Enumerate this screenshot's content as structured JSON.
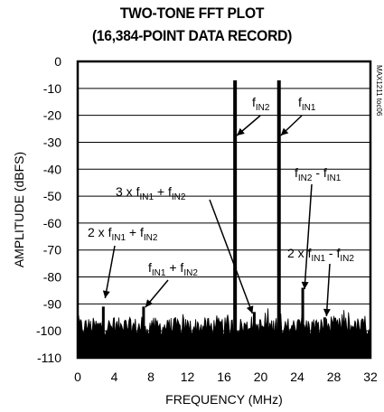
{
  "chart_data": {
    "type": "line",
    "title": "TWO-TONE FFT PLOT",
    "subtitle": "(16,384-POINT DATA RECORD)",
    "xlabel": "FREQUENCY (MHz)",
    "ylabel": "AMPLITUDE (dBFS)",
    "xlim": [
      0,
      32
    ],
    "ylim": [
      -110,
      0
    ],
    "xticks": [
      "0",
      "4",
      "8",
      "12",
      "16",
      "20",
      "24",
      "28",
      "32"
    ],
    "yticks": [
      "0",
      "-10",
      "-20",
      "-30",
      "-40",
      "-50",
      "-60",
      "-70",
      "-80",
      "-90",
      "-100",
      "-110"
    ],
    "grid": "horizontal",
    "noise_floor_dbfs": [
      -102,
      -95
    ],
    "peaks": [
      {
        "label": "fIN2",
        "freq_mhz": 17.2,
        "amplitude_dbfs": -7
      },
      {
        "label": "fIN1",
        "freq_mhz": 22.0,
        "amplitude_dbfs": -7
      },
      {
        "label": "2 x fIN1 + fIN2",
        "freq_mhz": 2.8,
        "amplitude_dbfs": -91
      },
      {
        "label": "fIN1 + fIN2",
        "freq_mhz": 7.2,
        "amplitude_dbfs": -91
      },
      {
        "label": "3 x fIN1 + fIN2",
        "freq_mhz": 19.3,
        "amplitude_dbfs": -93
      },
      {
        "label": "fIN2 - fIN1",
        "freq_mhz": 24.6,
        "amplitude_dbfs": -84
      },
      {
        "label": "2 x fIN1 - fIN2",
        "freq_mhz": 27.0,
        "amplitude_dbfs": -95
      }
    ],
    "watermark": "MAX1211 toc06"
  }
}
